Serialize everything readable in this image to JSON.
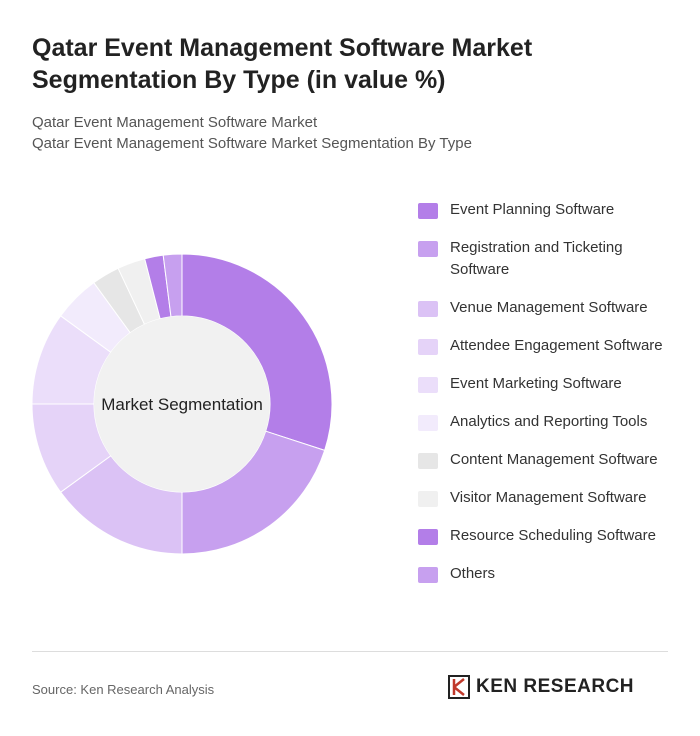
{
  "chart_data": {
    "type": "donut",
    "title": "Qatar Event Management Software Market Segmentation By Type (in value %)",
    "subtitle": [
      "Qatar Event Management Software Market",
      "Qatar Event Management Software Market Segmentation By Type"
    ],
    "center_label": "Market Segmentation",
    "categories": [
      "Event Planning Software",
      "Registration and Ticketing Software",
      "Venue Management Software",
      "Attendee Engagement Software",
      "Event Marketing Software",
      "Analytics and Reporting Tools",
      "Content Management Software",
      "Visitor Management Software",
      "Resource Scheduling Software",
      "Others"
    ],
    "values": [
      30,
      20,
      15,
      10,
      10,
      5,
      3,
      3,
      2,
      2
    ],
    "colors": [
      "#b37ee8",
      "#c7a0ef",
      "#dbc2f5",
      "#e5d3f8",
      "#ebdefa",
      "#f2ebfc",
      "#e6e6e6",
      "#f0f0f0",
      "#b37ee8",
      "#c7a0ef"
    ],
    "source": "Source: Ken Research Analysis",
    "logo": "KEN RESEARCH"
  }
}
